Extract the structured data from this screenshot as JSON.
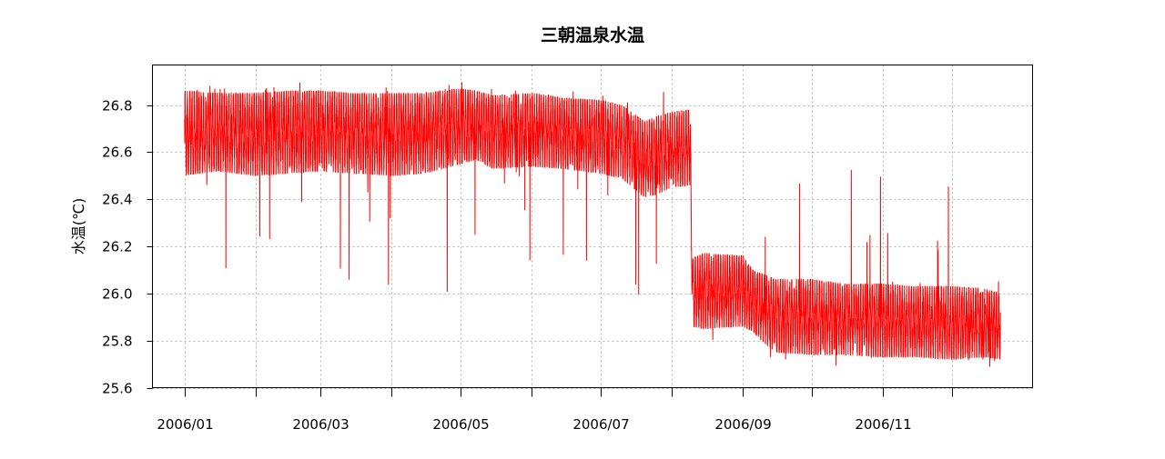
{
  "chart_data": {
    "type": "line",
    "title": "三朝温泉水温",
    "xlabel": "",
    "ylabel": "水温(℃)",
    "x_axis_type": "date",
    "xlim": [
      "2005-12-18",
      "2007-01-05"
    ],
    "ylim": [
      25.6,
      26.97
    ],
    "grid": true,
    "legend": "none",
    "y_ticks": [
      25.6,
      25.8,
      26.0,
      26.2,
      26.4,
      26.6,
      26.8
    ],
    "y_tick_labels": [
      "25.6",
      "25.8",
      "26.0",
      "26.2",
      "26.4",
      "26.6",
      "26.8"
    ],
    "x_ticks": [
      "2006-01-01",
      "2006-02-01",
      "2006-03-01",
      "2006-04-01",
      "2006-05-01",
      "2006-06-01",
      "2006-07-01",
      "2006-08-01",
      "2006-09-01",
      "2006-10-01",
      "2006-11-01",
      "2006-12-01"
    ],
    "x_tick_labels": [
      "2006/01",
      "",
      "2006/03",
      "",
      "2006/05",
      "",
      "2006/07",
      "",
      "2006/09",
      "",
      "2006/11",
      ""
    ],
    "series": [
      {
        "color": "#ff0000",
        "x": [
          "2006-01-01",
          "2006-01-15",
          "2006-02-01",
          "2006-02-15",
          "2006-03-01",
          "2006-03-15",
          "2006-04-01",
          "2006-04-15",
          "2006-05-01",
          "2006-05-08",
          "2006-05-15",
          "2006-06-01",
          "2006-06-15",
          "2006-07-01",
          "2006-07-10",
          "2006-07-20",
          "2006-07-25",
          "2006-08-01",
          "2006-08-09",
          "2006-08-10",
          "2006-08-15",
          "2006-09-01",
          "2006-09-05",
          "2006-09-15",
          "2006-10-01",
          "2006-10-15",
          "2006-11-01",
          "2006-11-15",
          "2006-12-01",
          "2006-12-15",
          "2006-12-22"
        ],
        "y_min": [
          26.5,
          26.52,
          26.5,
          26.51,
          26.52,
          26.51,
          26.5,
          26.51,
          26.55,
          26.57,
          26.53,
          26.54,
          26.53,
          26.51,
          26.49,
          26.41,
          26.42,
          26.45,
          26.46,
          25.86,
          25.85,
          25.86,
          25.84,
          25.75,
          25.74,
          25.74,
          25.73,
          25.73,
          25.72,
          25.73,
          25.72
        ],
        "y_max": [
          26.86,
          26.85,
          26.85,
          26.86,
          26.86,
          26.85,
          26.85,
          26.85,
          26.87,
          26.86,
          26.84,
          26.85,
          26.83,
          26.82,
          26.8,
          26.73,
          26.75,
          26.77,
          26.78,
          26.15,
          26.17,
          26.16,
          26.1,
          26.06,
          26.06,
          26.04,
          26.04,
          26.03,
          26.03,
          26.02,
          26.0
        ],
        "y_spike_low": 25.65,
        "y_spike_high": 26.92
      }
    ]
  }
}
